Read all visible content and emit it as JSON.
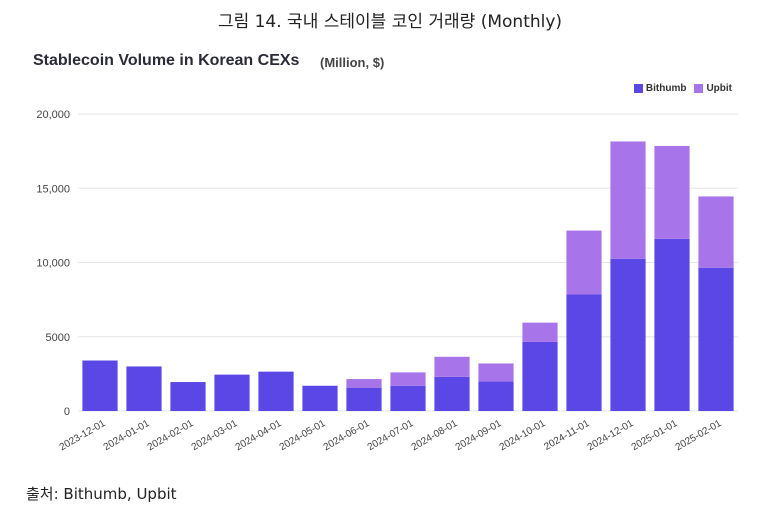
{
  "figure": {
    "caption": "그림 14. 국내 스테이블 코인 거래량 (Monthly)",
    "source": "출처: Bithumb, Upbit"
  },
  "colors": {
    "bithumb": "#5b46e6",
    "upbit": "#a874ea",
    "grid": "#e6e6e6",
    "axis_text": "#444444"
  },
  "chart_data": {
    "type": "bar",
    "stacked": true,
    "title": "Stablecoin Volume in Korean CEXs",
    "unit_label": "(Million, $)",
    "legend_position": "top-right",
    "grid": true,
    "ylim": [
      0,
      20000
    ],
    "y_ticks": [
      0,
      5000,
      10000,
      15000,
      20000
    ],
    "y_tick_labels": [
      "0",
      "5000",
      "10,000",
      "15,000",
      "20,000"
    ],
    "categories": [
      "2023-12-01",
      "2024-01-01",
      "2024-02-01",
      "2024-03-01",
      "2024-04-01",
      "2024-05-01",
      "2024-06-01",
      "2024-07-01",
      "2024-08-01",
      "2024-09-01",
      "2024-10-01",
      "2024-11-01",
      "2024-12-01",
      "2025-01-01",
      "2025-02-01"
    ],
    "series": [
      {
        "name": "Bithumb",
        "values": [
          3400,
          3000,
          1950,
          2450,
          2650,
          1700,
          1550,
          1700,
          2300,
          2000,
          4650,
          7850,
          10250,
          11600,
          9650
        ]
      },
      {
        "name": "Upbit",
        "values": [
          0,
          0,
          0,
          0,
          0,
          0,
          600,
          900,
          1350,
          1200,
          1300,
          4300,
          7900,
          6250,
          4800
        ]
      }
    ]
  }
}
